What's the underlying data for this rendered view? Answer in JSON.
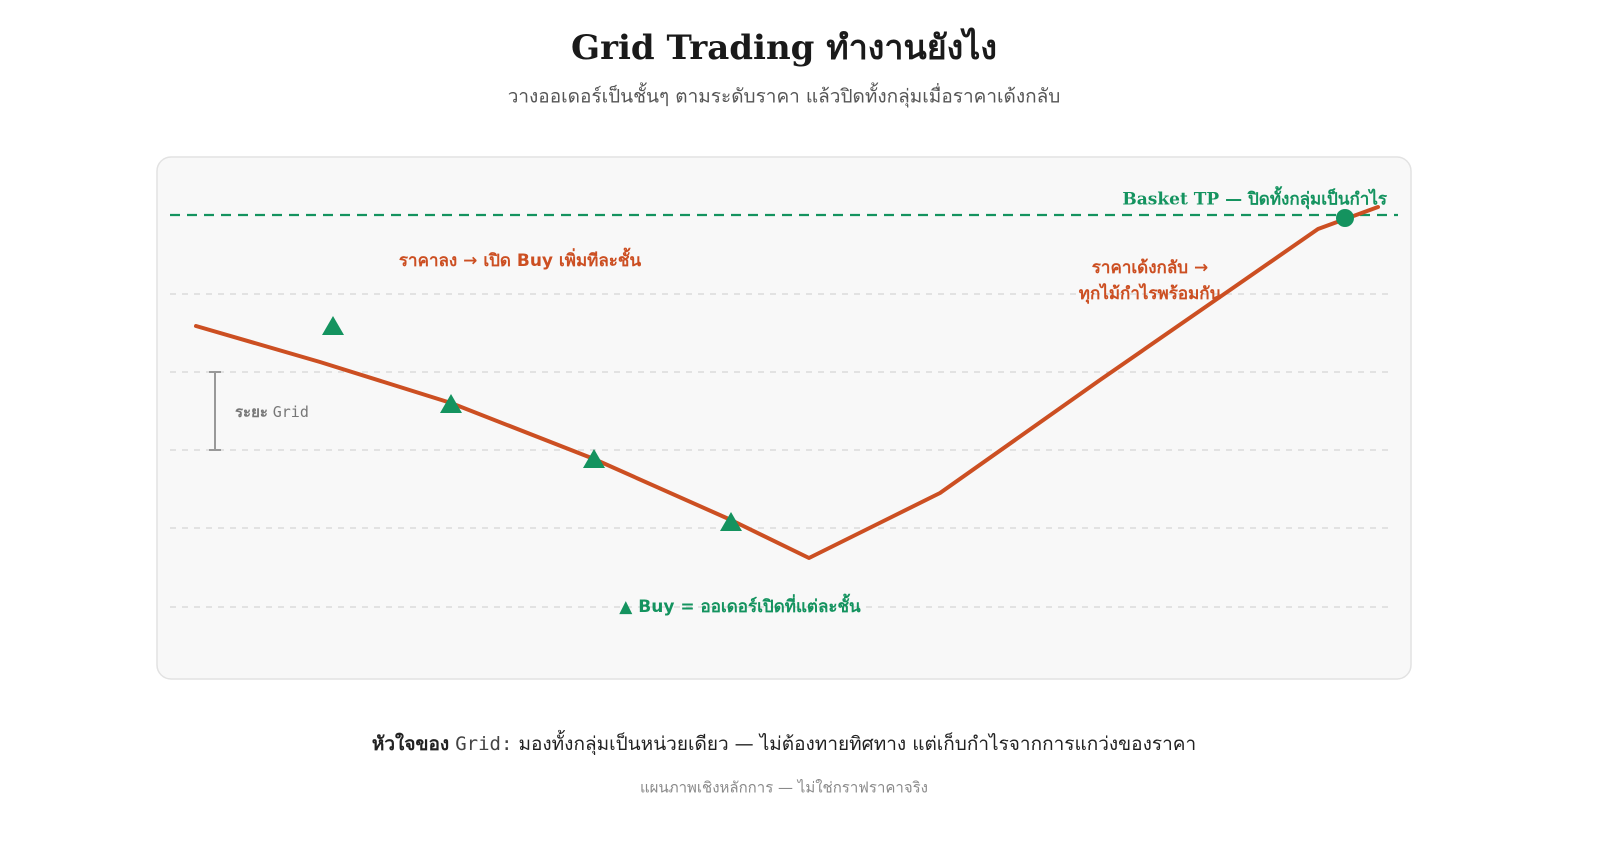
{
  "header": {
    "title": "Grid Trading ทำงานยังไง",
    "subtitle": "วางออเดอร์เป็นชั้นๆ ตามระดับราคา แล้วปิดทั้งกลุ่มเมื่อราคาเด้งกลับ"
  },
  "diagram": {
    "basket_tp": "Basket TP — ปิดทั้งกลุ่มเป็นกำไร",
    "falling_label": "ราคาลง → เปิด Buy เพิ่มทีละชั้น",
    "rebound_label": [
      "ราคาเด้งกลับ →",
      "ทุกไม้กำไรพร้อมกัน"
    ],
    "grid_spacing_label": [
      "ระยะ",
      "Grid"
    ],
    "legend": "▲ Buy = ออเดอร์เปิดที่แต่ละชั้น"
  },
  "footer": {
    "prefix": "หัวใจของ",
    "keyword": "Grid:",
    "text": "มองทั้งกลุ่มเป็นหน่วยเดียว — ไม่ต้องทายทิศทาง แต่เก็บกำไรจากการแกว่งของราคา",
    "note": "แผนภาพเชิงหลักการ — ไม่ใช่กราฟราคาจริง"
  }
}
